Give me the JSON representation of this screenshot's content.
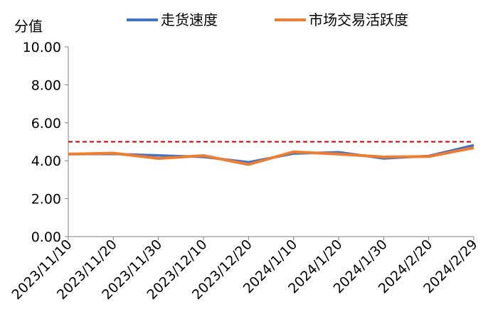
{
  "chart_data": {
    "type": "line",
    "ylabel": "分值",
    "ylim": [
      0,
      10
    ],
    "yticks": [
      "0.00",
      "2.00",
      "4.00",
      "6.00",
      "8.00",
      "10.00"
    ],
    "reference_line": {
      "value": 5.0,
      "style": "dashed",
      "color": "#c00000"
    },
    "x": [
      "2023/11/10",
      "2023/11/20",
      "2023/11/30",
      "2023/12/10",
      "2023/12/20",
      "2024/1/10",
      "2024/1/20",
      "2024/1/30",
      "2024/2/20",
      "2024/2/29"
    ],
    "series": [
      {
        "name": "走货速度",
        "color": "#4472c4",
        "values": [
          4.35,
          4.36,
          4.28,
          4.2,
          3.92,
          4.38,
          4.45,
          4.12,
          4.25,
          4.82
        ]
      },
      {
        "name": "市场交易活跃度",
        "color": "#ed7d31",
        "values": [
          4.35,
          4.4,
          4.12,
          4.27,
          3.8,
          4.47,
          4.35,
          4.2,
          4.22,
          4.68
        ]
      }
    ],
    "grid": false,
    "legend_position": "top"
  }
}
